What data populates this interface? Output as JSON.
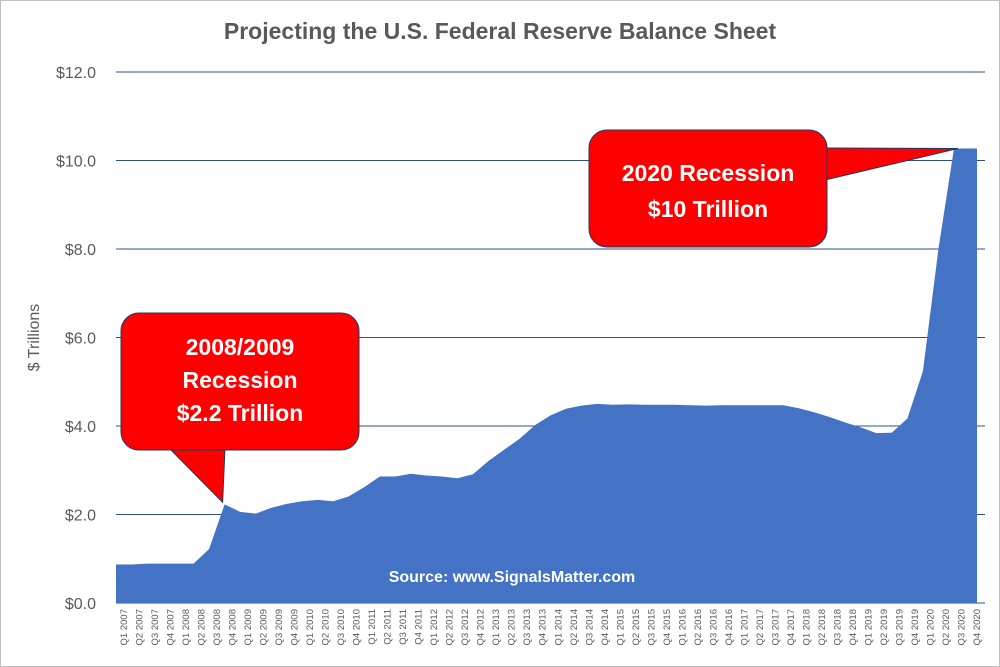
{
  "chart_data": {
    "type": "area",
    "title": "Projecting the U.S. Federal Reserve Balance Sheet",
    "ylabel": "$ Trillions",
    "xlabel": "",
    "ylim": [
      0,
      12
    ],
    "yticks": [
      "$0.0",
      "$2.0",
      "$4.0",
      "$6.0",
      "$8.0",
      "$10.0",
      "$12.0"
    ],
    "grid": true,
    "color": "#4472c4",
    "categories": [
      "Q1 2007",
      "Q2 2007",
      "Q3 2007",
      "Q4 2007",
      "Q1 2008",
      "Q2 2008",
      "Q3 2008",
      "Q4 2008",
      "Q1 2009",
      "Q2 2009",
      "Q3 2009",
      "Q4 2009",
      "Q1 2010",
      "Q2 2010",
      "Q3 2010",
      "Q4 2010",
      "Q1 2011",
      "Q2 2011",
      "Q3 2011",
      "Q4 2011",
      "Q1 2012",
      "Q2 2012",
      "Q3 2012",
      "Q4 2012",
      "Q1 2013",
      "Q2 2013",
      "Q3 2013",
      "Q4 2013",
      "Q1 2014",
      "Q2 2014",
      "Q3 2014",
      "Q4 2014",
      "Q1 2015",
      "Q2 2015",
      "Q3 2015",
      "Q4 2015",
      "Q1 2016",
      "Q2 2016",
      "Q3 2016",
      "Q4 2016",
      "Q1 2017",
      "Q2 2017",
      "Q3 2017",
      "Q4 2017",
      "Q1 2018",
      "Q2 2018",
      "Q3 2018",
      "Q4 2018",
      "Q1 2019",
      "Q2 2019",
      "Q3 2019",
      "Q4 2019",
      "Q1 2020",
      "Q2 2020",
      "Q3 2020",
      "Q4 2020"
    ],
    "values": [
      0.87,
      0.87,
      0.89,
      0.89,
      0.89,
      0.89,
      1.22,
      2.23,
      2.06,
      2.02,
      2.15,
      2.24,
      2.3,
      2.33,
      2.3,
      2.41,
      2.62,
      2.86,
      2.86,
      2.92,
      2.88,
      2.86,
      2.82,
      2.91,
      3.21,
      3.46,
      3.71,
      4.02,
      4.24,
      4.39,
      4.46,
      4.5,
      4.48,
      4.49,
      4.48,
      4.48,
      4.48,
      4.47,
      4.46,
      4.47,
      4.47,
      4.47,
      4.47,
      4.47,
      4.4,
      4.31,
      4.2,
      4.08,
      3.97,
      3.84,
      3.85,
      4.17,
      5.24,
      8.0,
      10.27,
      10.27
    ],
    "annotations": [
      {
        "lines": [
          "2008/2009",
          "Recession",
          "$2.2 Trillion"
        ],
        "points_to": "Q4 2008",
        "value": 2.23
      },
      {
        "lines": [
          "2020 Recession",
          "$10 Trillion"
        ],
        "points_to": "Q3 2020",
        "value": 10.27
      },
      {
        "text": "Source: www.SignalsMatter.com"
      }
    ],
    "annotation_color": "#ff0000"
  }
}
